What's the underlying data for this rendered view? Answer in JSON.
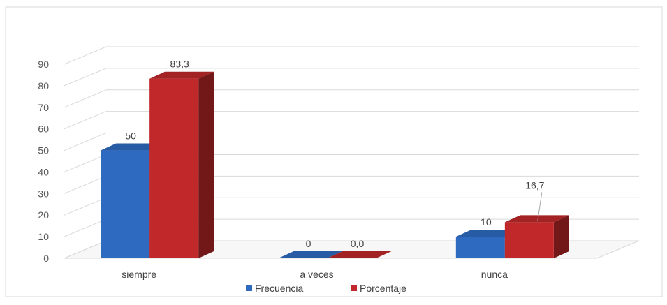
{
  "chart_data": {
    "type": "bar",
    "title": "",
    "xlabel": "",
    "ylabel": "",
    "categories": [
      "siempre",
      "a veces",
      "nunca"
    ],
    "series": [
      {
        "name": "Frecuencia",
        "values": [
          50,
          0,
          10
        ],
        "labels": [
          "50",
          "0",
          "10"
        ],
        "color": "#2e6bc0"
      },
      {
        "name": "Porcentaje",
        "values": [
          83.3,
          0.0,
          16.7
        ],
        "labels": [
          "83,3",
          "0,0",
          "16,7"
        ],
        "color": "#c0282a"
      }
    ],
    "y_ticks": [
      "0",
      "10",
      "20",
      "30",
      "40",
      "50",
      "60",
      "70",
      "80",
      "90"
    ],
    "ylim": [
      0,
      90
    ],
    "grid": true,
    "style": "3d-column",
    "legend_position": "bottom"
  }
}
